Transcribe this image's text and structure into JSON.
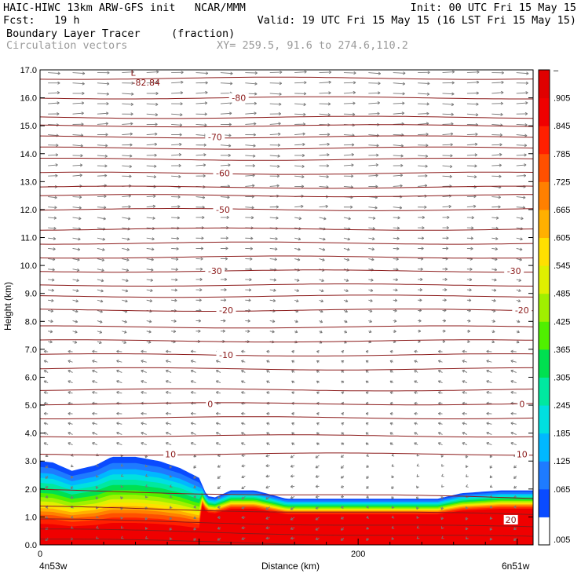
{
  "header": {
    "line1_left": "HAIC-HIWC 13km ARW-GFS init   NCAR/MMM",
    "line1_right": "Init: 00 UTC Fri 15 May 15",
    "line2_left": "Fcst:   19 h",
    "line2_right": "Valid: 19 UTC Fri 15 May 15 (16 LST Fri 15 May 15)",
    "field_name": "Boundary Layer Tracer",
    "field_units": "(fraction)",
    "vectors_label": "Circulation vectors",
    "xy_label": "XY= 259.5, 91.6 to 274.6,110.2"
  },
  "chart_data": {
    "type": "heatmap",
    "xlabel": "Distance (km)",
    "ylabel": "Height (km)",
    "xlim": [
      0,
      310
    ],
    "ylim": [
      0,
      17
    ],
    "x_ticks": [
      {
        "value": 0,
        "label": "0"
      },
      {
        "value": 200,
        "label": "200"
      }
    ],
    "x_end_labels": {
      "left": "4n53w",
      "right": "6n51w"
    },
    "y_ticks": [
      "0.0",
      "1.0",
      "2.0",
      "3.0",
      "4.0",
      "5.0",
      "6.0",
      "7.0",
      "8.0",
      "9.0",
      "10.0",
      "11.0",
      "12.0",
      "13.0",
      "14.0",
      "15.0",
      "16.0",
      "17.0"
    ],
    "colorbar": {
      "labels": [
        ".005",
        ".065",
        ".125",
        ".185",
        ".245",
        ".305",
        ".365",
        ".425",
        ".485",
        ".545",
        ".605",
        ".665",
        ".725",
        ".785",
        ".845",
        ".905",
        "–"
      ],
      "colors": [
        "#ffffff",
        "#0a4bff",
        "#1e7bff",
        "#00b8ff",
        "#00e0e0",
        "#00e8a0",
        "#00e050",
        "#50f000",
        "#a0f000",
        "#e0f000",
        "#ffe000",
        "#ffb000",
        "#ff8000",
        "#ff5000",
        "#ff2000",
        "#f00000",
        "#e00000"
      ]
    },
    "bl_tracer_top_km": [
      {
        "x": 0,
        "y": 3.0
      },
      {
        "x": 8,
        "y": 2.95
      },
      {
        "x": 20,
        "y": 2.65
      },
      {
        "x": 35,
        "y": 2.85
      },
      {
        "x": 45,
        "y": 3.15
      },
      {
        "x": 60,
        "y": 3.15
      },
      {
        "x": 75,
        "y": 3.0
      },
      {
        "x": 88,
        "y": 2.75
      },
      {
        "x": 100,
        "y": 2.4
      },
      {
        "x": 105,
        "y": 1.75
      },
      {
        "x": 110,
        "y": 1.7
      },
      {
        "x": 120,
        "y": 1.95
      },
      {
        "x": 135,
        "y": 1.95
      },
      {
        "x": 155,
        "y": 1.65
      },
      {
        "x": 200,
        "y": 1.65
      },
      {
        "x": 250,
        "y": 1.65
      },
      {
        "x": 265,
        "y": 1.85
      },
      {
        "x": 290,
        "y": 1.95
      },
      {
        "x": 310,
        "y": 1.95
      }
    ],
    "temperature_contours": [
      {
        "label": "-80",
        "height_km": 16.0,
        "label_x": 125
      },
      {
        "label": "-70",
        "height_km": 14.6,
        "label_x": 110
      },
      {
        "label": "-60",
        "height_km": 13.3,
        "label_x": 115
      },
      {
        "label": "-50",
        "height_km": 12.0,
        "label_x": 115
      },
      {
        "label": "-30",
        "height_km": 9.8,
        "label_x": 110,
        "label_x2": 298
      },
      {
        "label": "-20",
        "height_km": 8.4,
        "label_x": 117,
        "label_x2": 303
      },
      {
        "label": "-10",
        "height_km": 6.8,
        "label_x": 117
      },
      {
        "label": "0",
        "height_km": 5.05,
        "label_x": 107,
        "label_x2": 303
      },
      {
        "label": "10",
        "height_km": 3.25,
        "label_x": 82,
        "label_x2": 303
      },
      {
        "label": "20",
        "height_km": 0.9,
        "label_x": 296
      }
    ],
    "extra_contour_levels_km": [
      0.2,
      0.55,
      1.35,
      1.95,
      3.9,
      4.55,
      5.55,
      6.3,
      7.3,
      7.8,
      8.9,
      9.3,
      10.3,
      10.8,
      11.3,
      12.5,
      12.8,
      13.8,
      14.2,
      15.0,
      15.3,
      16.7
    ],
    "annotations": [
      {
        "text": "L",
        "x": 57,
        "y_km": 16.9
      },
      {
        "text": "-82.84",
        "x": 58,
        "y_km": 16.55
      }
    ]
  }
}
